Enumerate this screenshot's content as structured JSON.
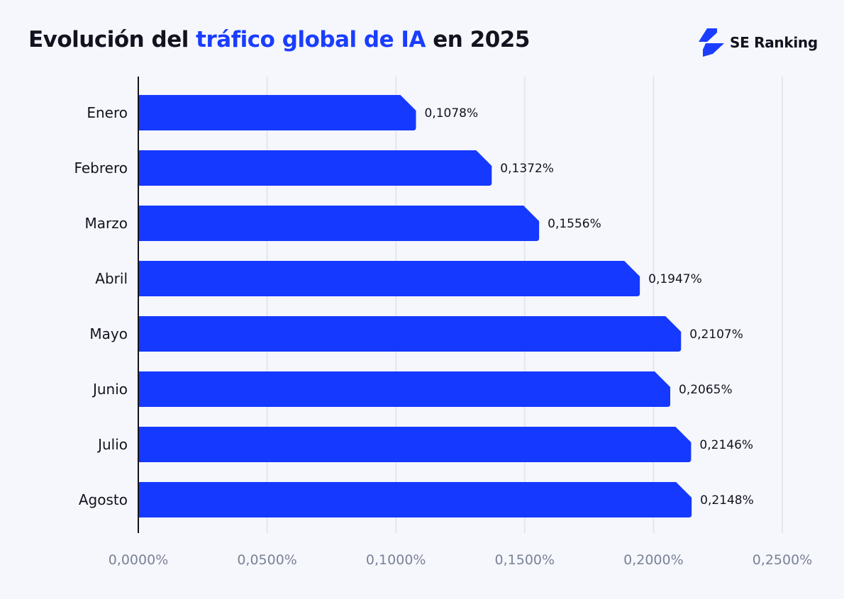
{
  "title": {
    "prefix": "Evolución del ",
    "highlight": "tráfico global de IA",
    "suffix": " en 2025"
  },
  "brand": {
    "name": "SE Ranking"
  },
  "colors": {
    "bar": "#1539ff",
    "highlight": "#1a3dff",
    "grid": "#e3e6ef",
    "axis_label": "#7a8296",
    "text": "#12131f"
  },
  "chart_data": {
    "type": "bar",
    "orientation": "horizontal",
    "categories": [
      "Enero",
      "Febrero",
      "Marzo",
      "Abril",
      "Mayo",
      "Junio",
      "Julio",
      "Agosto"
    ],
    "values": [
      0.1078,
      0.1372,
      0.1556,
      0.1947,
      0.2107,
      0.2065,
      0.2146,
      0.2148
    ],
    "value_labels": [
      "0,1078%",
      "0,1372%",
      "0,1556%",
      "0,1947%",
      "0,2107%",
      "0,2065%",
      "0,2146%",
      "0,2148%"
    ],
    "xlim": [
      0,
      0.25
    ],
    "x_ticks": [
      0,
      0.05,
      0.1,
      0.15,
      0.2,
      0.25
    ],
    "x_tick_labels": [
      "0,0000%",
      "0,0500%",
      "0,1000%",
      "0,1500%",
      "0,2000%",
      "0,2500%"
    ],
    "title": "Evolución del tráfico global de IA en 2025",
    "xlabel": "",
    "ylabel": "",
    "grid": true
  }
}
